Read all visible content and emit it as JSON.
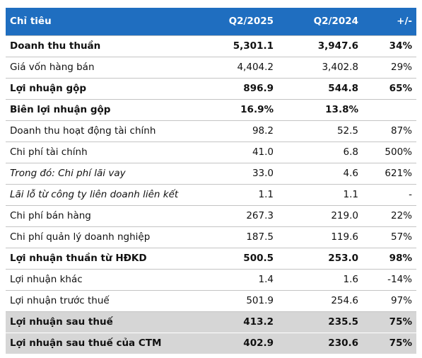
{
  "header": {
    "col0": "Chỉ tiêu",
    "col1": "Q2/2025",
    "col2": "Q2/2024",
    "col3": "+/-"
  },
  "rows": [
    {
      "label": "Doanh thu thuần",
      "q2_2025": "5,301.1",
      "q2_2024": "3,947.6",
      "change": "34%",
      "style": "bold"
    },
    {
      "label": "Giá vốn hàng bán",
      "q2_2025": "4,404.2",
      "q2_2024": "3,402.8",
      "change": "29%",
      "style": "normal"
    },
    {
      "label": "Lợi nhuận gộp",
      "q2_2025": "896.9",
      "q2_2024": "544.8",
      "change": "65%",
      "style": "bold"
    },
    {
      "label": "Biên lợi nhuận gộp",
      "q2_2025": "16.9%",
      "q2_2024": "13.8%",
      "change": "",
      "style": "bold"
    },
    {
      "label": "Doanh thu hoạt động tài chính",
      "q2_2025": "98.2",
      "q2_2024": "52.5",
      "change": "87%",
      "style": "normal"
    },
    {
      "label": "Chi phí tài chính",
      "q2_2025": "41.0",
      "q2_2024": "6.8",
      "change": "500%",
      "style": "normal"
    },
    {
      "label": "Trong đó: Chi phí lãi vay",
      "q2_2025": "33.0",
      "q2_2024": "4.6",
      "change": "621%",
      "style": "italic"
    },
    {
      "label": "Lãi lỗ từ công ty liên doanh liên kết",
      "q2_2025": "1.1",
      "q2_2024": "1.1",
      "change": "-",
      "style": "italic"
    },
    {
      "label": "Chi phí bán hàng",
      "q2_2025": "267.3",
      "q2_2024": "219.0",
      "change": "22%",
      "style": "normal"
    },
    {
      "label": "Chi phí quản lý doanh nghiệp",
      "q2_2025": "187.5",
      "q2_2024": "119.6",
      "change": "57%",
      "style": "normal"
    },
    {
      "label": "Lợi nhuận thuần từ HĐKD",
      "q2_2025": "500.5",
      "q2_2024": "253.0",
      "change": "98%",
      "style": "bold"
    },
    {
      "label": "Lợi nhuận khác",
      "q2_2025": "1.4",
      "q2_2024": "1.6",
      "change": "-14%",
      "style": "normal"
    },
    {
      "label": "Lợi nhuận trước thuế",
      "q2_2025": "501.9",
      "q2_2024": "254.6",
      "change": "97%",
      "style": "normal"
    },
    {
      "label": "Lợi nhuận sau thuế",
      "q2_2025": "413.2",
      "q2_2024": "235.5",
      "change": "75%",
      "style": "bold shade"
    },
    {
      "label": "Lợi nhuận sau thuế của CTM",
      "q2_2025": "402.9",
      "q2_2024": "230.6",
      "change": "75%",
      "style": "bold shade"
    }
  ],
  "colors": {
    "header_bg": "#1f6ec0",
    "header_text": "#ffffff",
    "shade_bg": "#d6d6d6",
    "rule": "#c4c4c4"
  }
}
